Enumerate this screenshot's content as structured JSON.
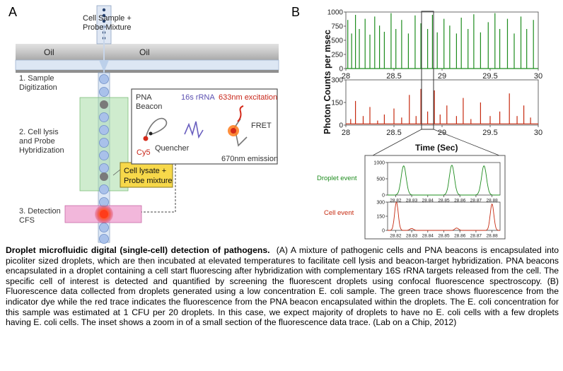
{
  "panel_a": {
    "letter": "A",
    "cell_sample_label": [
      "Cell Sample +",
      "Probe Mixture"
    ],
    "oil_left": "Oil",
    "oil_right": "Oil",
    "step1": [
      "1. Sample",
      "Digitization"
    ],
    "step2": [
      "2. Cell lysis",
      "and Probe",
      "Hybridization"
    ],
    "step3": [
      "3. Detection",
      "CFS"
    ],
    "inset": {
      "pna_beacon": [
        "PNA",
        "Beacon"
      ],
      "rrna": "16s rRNA",
      "excitation": "633nm excitation",
      "fret": "FRET",
      "cy5": "Cy5",
      "quencher": "Quencher",
      "emission": "670nm emission"
    },
    "lysate_box": [
      "Cell lysate +",
      "Probe mixture"
    ]
  },
  "panel_b": {
    "letter": "B",
    "ylabel": "Photon Counts per msec",
    "xlabel": "Time (Sec)",
    "colors": {
      "green": "#1e8c1e",
      "red": "#c62a10"
    }
  },
  "chart_data": [
    {
      "type": "line",
      "series": [
        {
          "name": "",
          "color": "green",
          "baseline": 0,
          "peaks": [
            [
              28.02,
              860
            ],
            [
              28.06,
              620
            ],
            [
              28.1,
              950
            ],
            [
              28.14,
              700
            ],
            [
              28.2,
              880
            ],
            [
              28.25,
              600
            ],
            [
              28.3,
              920
            ],
            [
              28.35,
              760
            ],
            [
              28.4,
              650
            ],
            [
              28.47,
              980
            ],
            [
              28.52,
              700
            ],
            [
              28.58,
              860
            ],
            [
              28.65,
              620
            ],
            [
              28.72,
              940
            ],
            [
              28.78,
              800
            ],
            [
              28.85,
              700
            ],
            [
              28.9,
              950
            ],
            [
              28.95,
              640
            ],
            [
              29.02,
              880
            ],
            [
              29.08,
              760
            ],
            [
              29.15,
              620
            ],
            [
              29.2,
              900
            ],
            [
              29.27,
              700
            ],
            [
              29.33,
              960
            ],
            [
              29.4,
              640
            ],
            [
              29.48,
              820
            ],
            [
              29.55,
              980
            ],
            [
              29.6,
              700
            ],
            [
              29.68,
              880
            ],
            [
              29.75,
              620
            ],
            [
              29.82,
              920
            ],
            [
              29.88,
              700
            ],
            [
              29.95,
              860
            ]
          ]
        }
      ],
      "xlim": [
        28,
        30
      ],
      "ylim": [
        0,
        1000
      ],
      "xticks": [
        "28",
        "28.5",
        "29",
        "29.5",
        "30"
      ],
      "yticks": [
        "0",
        "250",
        "500",
        "750",
        "1000"
      ]
    },
    {
      "type": "line",
      "series": [
        {
          "name": "",
          "color": "red",
          "baseline": 8,
          "peaks": [
            [
              28.05,
              40
            ],
            [
              28.1,
              160
            ],
            [
              28.18,
              60
            ],
            [
              28.25,
              120
            ],
            [
              28.33,
              30
            ],
            [
              28.4,
              70
            ],
            [
              28.5,
              110
            ],
            [
              28.58,
              50
            ],
            [
              28.66,
              200
            ],
            [
              28.73,
              60
            ],
            [
              28.78,
              240
            ],
            [
              28.85,
              90
            ],
            [
              28.92,
              230
            ],
            [
              28.98,
              70
            ],
            [
              29.05,
              130
            ],
            [
              29.15,
              60
            ],
            [
              29.22,
              180
            ],
            [
              29.3,
              40
            ],
            [
              29.4,
              150
            ],
            [
              29.5,
              60
            ],
            [
              29.6,
              90
            ],
            [
              29.7,
              210
            ],
            [
              29.78,
              60
            ],
            [
              29.85,
              130
            ],
            [
              29.92,
              50
            ]
          ]
        }
      ],
      "xlim": [
        28,
        30
      ],
      "ylim": [
        0,
        300
      ],
      "xticks": [
        "28",
        "28.5",
        "29",
        "29.5",
        "30"
      ],
      "yticks": [
        "0",
        "150",
        "300"
      ]
    },
    {
      "type": "line",
      "label": "Droplet event",
      "series": [
        {
          "name": "",
          "color": "green",
          "peaks": [
            [
              28.825,
              900
            ],
            [
              28.855,
              920
            ],
            [
              28.875,
              900
            ]
          ]
        }
      ],
      "xlim": [
        28.815,
        28.885
      ],
      "ylim": [
        0,
        1000
      ],
      "xticks": [
        "28.82",
        "28.83",
        "28.84",
        "28.85",
        "28.86",
        "28.87",
        "28.88"
      ],
      "yticks": [
        "0",
        "500",
        "1000"
      ]
    },
    {
      "type": "line",
      "label": "Cell event",
      "series": [
        {
          "name": "",
          "color": "red",
          "peaks": [
            [
              28.8205,
              300
            ],
            [
              28.83,
              20
            ],
            [
              28.858,
              25
            ],
            [
              28.88,
              280
            ]
          ]
        }
      ],
      "xlim": [
        28.815,
        28.885
      ],
      "ylim": [
        0,
        300
      ],
      "xticks": [
        "28.82",
        "28.83",
        "28.84",
        "28.85",
        "28.86",
        "28.87",
        "28.88"
      ],
      "yticks": [
        "0",
        "150",
        "300"
      ]
    }
  ],
  "caption": {
    "title": "Droplet microfluidic digital (single-cell) detection of pathogens.",
    "body": "(A) A mixture  of pathogenic cells and PNA beacons is encapsulated into picoliter sized droplets, which are then incubated at elevated temperatures to facilitate cell lysis and beacon-target hybridization. PNA beacons encapsulated in a droplet containing a cell start fluorescing after hybridization with complementary 16S rRNA targets released from the cell. The specific cell of interest is detected and quantified by screening the fluorescent droplets using confocal fluorescence spectroscopy. (B) Fluorescence data collected from droplets generated using a low concentration E. coli sample.  The green  trace shows  fluorescence  from the indicator  dye  while the red trace indicates the fluorescence from the PNA  beacon encapsulated within the droplets. The E. coli concentration for this sample was estimated at 1 CFU  per 20 droplets.  In  this  case,  we expect  majority  of  droplets  to have no E. coli cells with a few droplets having E. coli cells. The inset shows a zoom in of a small section of the fluorescence data trace. (Lab on a Chip, 2012)"
  }
}
